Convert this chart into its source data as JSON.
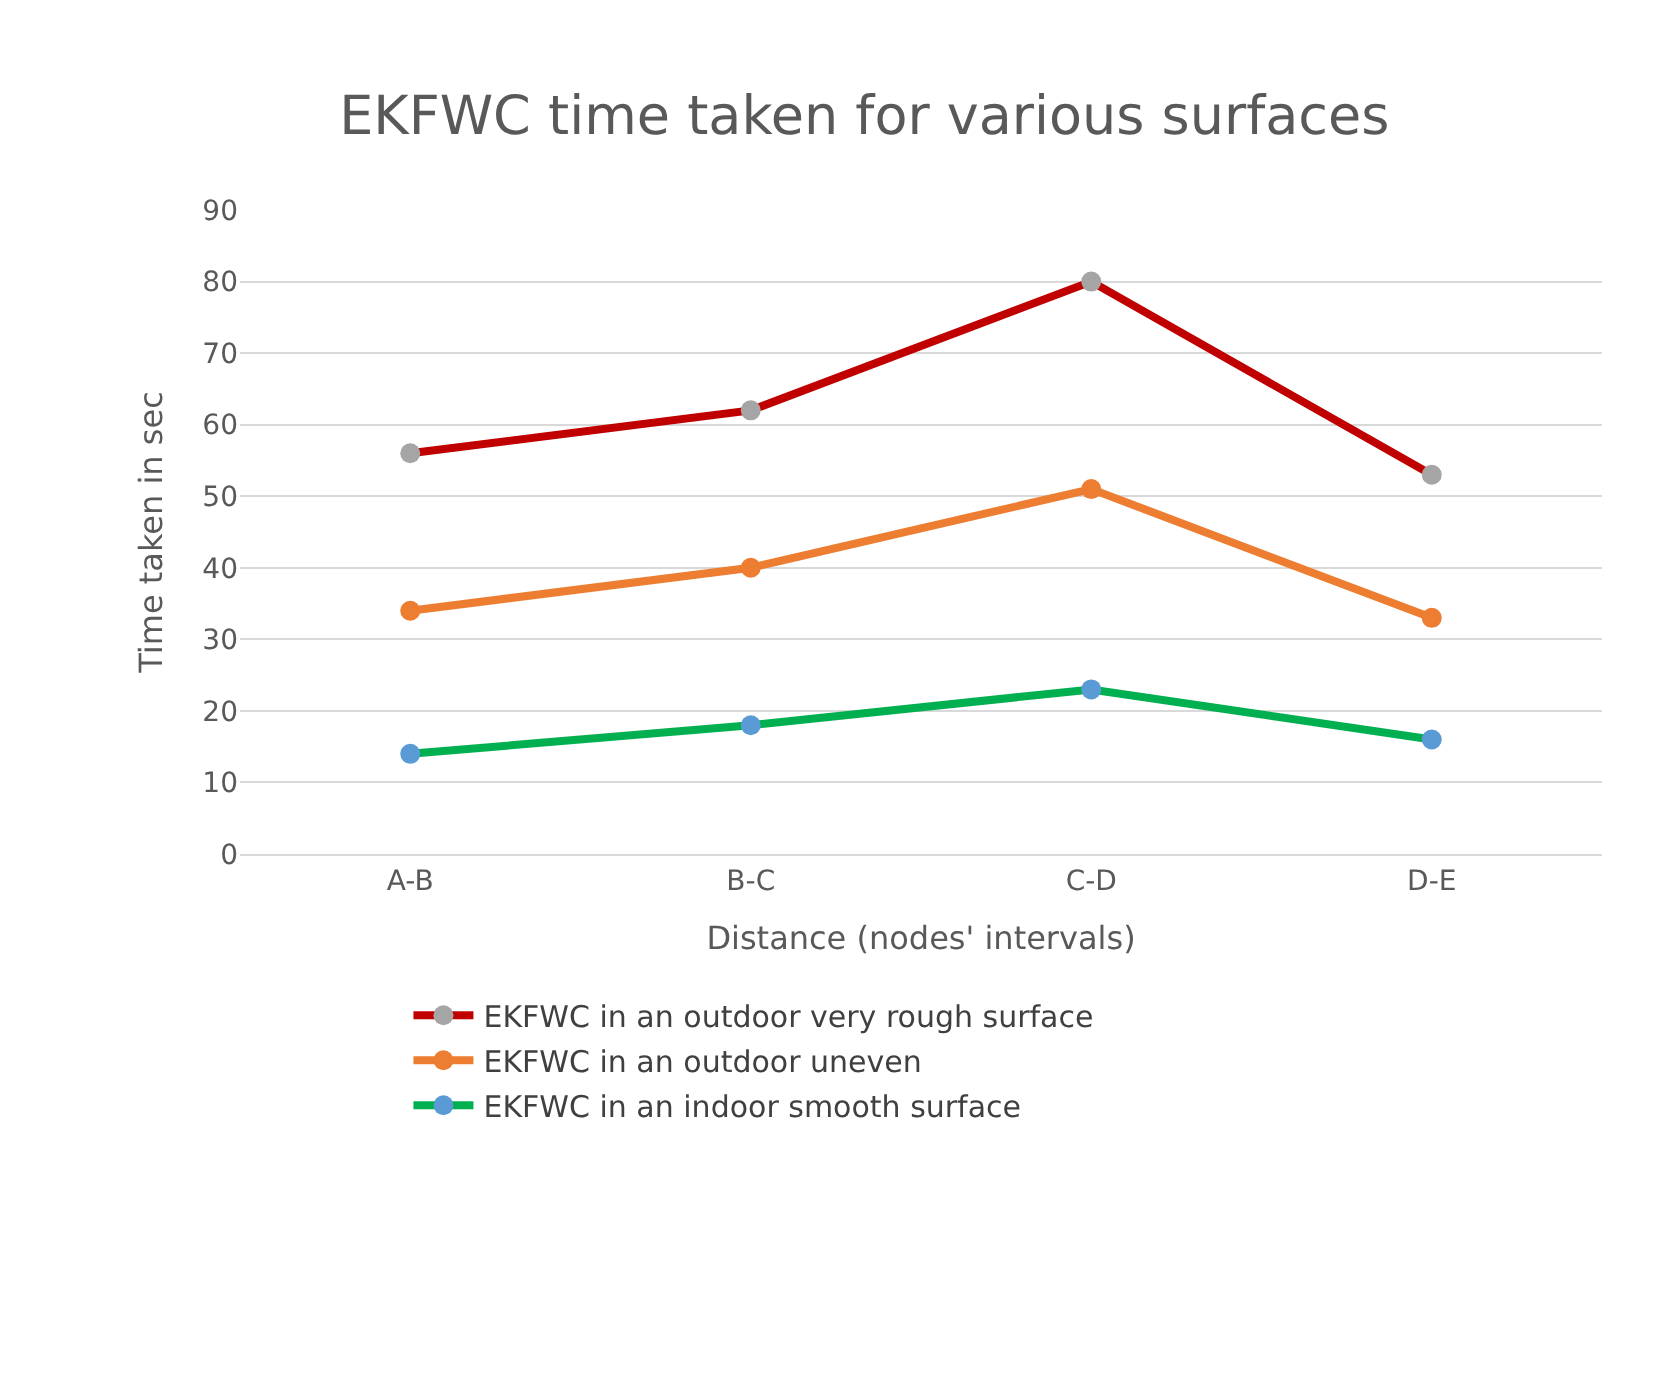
{
  "chart_data": {
    "type": "line",
    "title": "EKFWC time taken for various surfaces",
    "xlabel": "Distance (nodes' intervals)",
    "ylabel": "Time taken in sec",
    "categories": [
      "A-B",
      "B-C",
      "C-D",
      "D-E"
    ],
    "series": [
      {
        "name": "EKFWC in an outdoor very rough surface",
        "color": "#c00000",
        "colors": [
          "#a5a5a5",
          "#a5a5a5",
          "#a5a5a5",
          "#a5a5a5"
        ],
        "values": [
          56,
          62,
          80,
          53
        ]
      },
      {
        "name": "EKFWC in an outdoor uneven",
        "color": "#ed7d31",
        "colors": [
          "#ed7d31",
          "#ed7d31",
          "#ed7d31",
          "#ed7d31"
        ],
        "values": [
          34,
          40,
          51,
          33
        ]
      },
      {
        "name": "EKFWC in an indoor smooth surface",
        "color": "#00b050",
        "colors": [
          "#5b9bd5",
          "#5b9bd5",
          "#5b9bd5",
          "#5b9bd5"
        ],
        "values": [
          14,
          18,
          23,
          16
        ]
      }
    ],
    "ylim": [
      0,
      90
    ],
    "yticks": [
      0,
      10,
      20,
      30,
      40,
      50,
      60,
      70,
      80,
      90
    ],
    "grid": "y",
    "legend": "bottom",
    "marker": "circle",
    "line_style": "solid"
  }
}
